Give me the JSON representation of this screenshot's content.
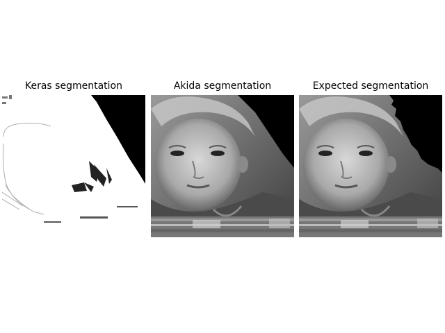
{
  "panels": [
    {
      "title": "Keras segmentation",
      "kind": "mask"
    },
    {
      "title": "Akida segmentation",
      "kind": "photo-masked"
    },
    {
      "title": "Expected segmentation",
      "kind": "photo-masked-fine"
    }
  ],
  "colors": {
    "background": "#ffffff",
    "mask_background": "#000000",
    "mask_foreground": "#ffffff"
  }
}
